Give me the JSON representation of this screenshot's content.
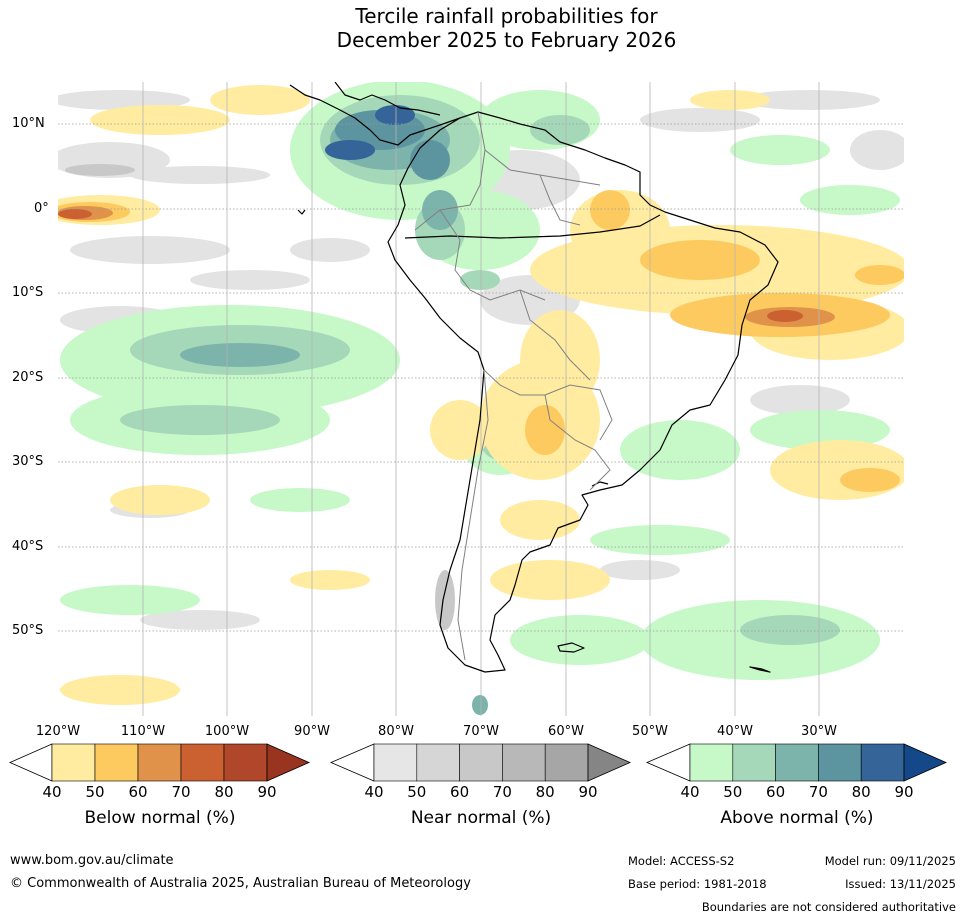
{
  "title_line1": "Tercile rainfall probabilities for",
  "title_line2": "December 2025 to February 2026",
  "lat_labels": [
    "10°N",
    "0°",
    "10°S",
    "20°S",
    "30°S",
    "40°S",
    "50°S"
  ],
  "lon_labels": [
    "120°W",
    "110°W",
    "100°W",
    "90°W",
    "80°W",
    "70°W",
    "60°W",
    "50°W",
    "40°W",
    "30°W"
  ],
  "colorbars": [
    {
      "name": "below",
      "label": "Below normal (%)",
      "ticks": [
        "40",
        "50",
        "60",
        "70",
        "80",
        "90"
      ],
      "colors": [
        "#ffeca0",
        "#fdca60",
        "#e0924a",
        "#cb6031",
        "#b0472a",
        "#983420"
      ]
    },
    {
      "name": "near",
      "label": "Near normal (%)",
      "ticks": [
        "40",
        "50",
        "60",
        "70",
        "80",
        "90"
      ],
      "colors": [
        "#e6e6e6",
        "#d6d6d6",
        "#c8c8c8",
        "#b8b8b8",
        "#a6a6a6",
        "#858585"
      ]
    },
    {
      "name": "above",
      "label": "Above normal (%)",
      "ticks": [
        "40",
        "50",
        "60",
        "70",
        "80",
        "90"
      ],
      "colors": [
        "#c6f8c8",
        "#a4d8b8",
        "#7cb4ac",
        "#5c94a0",
        "#346498",
        "#144888"
      ]
    }
  ],
  "footer": {
    "website": "www.bom.gov.au/climate",
    "copyright": "© Commonwealth of Australia 2025, Australian Bureau of Meteorology",
    "model": "Model: ACCESS-S2",
    "base_period": "Base period: 1981-2018",
    "model_run": "Model run: 09/11/2025",
    "issued": "Issued: 13/11/2025",
    "disclaimer": "Boundaries are not considered authoritative"
  }
}
